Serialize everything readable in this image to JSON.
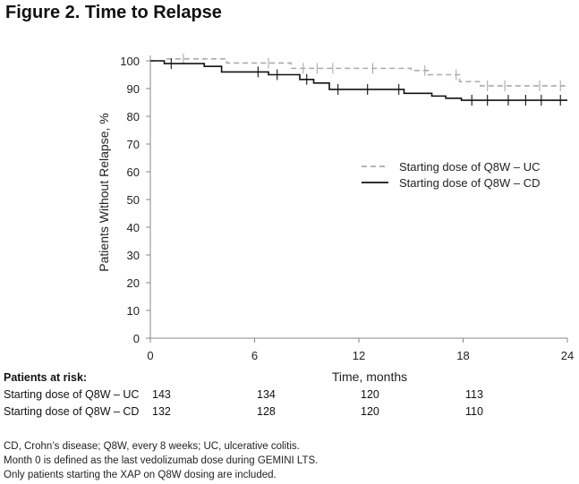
{
  "figure_title": "Figure 2. Time to Relapse",
  "chart_data": {
    "type": "line",
    "title": "",
    "xlabel": "Time, months",
    "ylabel": "Patients Without Relapse, %",
    "xlim": [
      0,
      24
    ],
    "ylim": [
      0,
      100
    ],
    "x_ticks": [
      0,
      6,
      12,
      18,
      24
    ],
    "y_ticks": [
      0,
      10,
      20,
      30,
      40,
      50,
      60,
      70,
      80,
      90,
      100
    ],
    "grid": false,
    "legend_position": "right-center",
    "series": [
      {
        "name": "Starting dose of Q8W – UC",
        "color": "#aaaaaa",
        "line_style": "dashed",
        "x": [
          0,
          0.8,
          0.8,
          4.4,
          4.4,
          8.1,
          8.1,
          15.0,
          15.0,
          16.0,
          16.0,
          17.8,
          17.8,
          19.0,
          19.0,
          24.0
        ],
        "y": [
          100,
          100,
          100.7,
          100.7,
          99.2,
          99.2,
          97.3,
          97.3,
          96.5,
          96.5,
          95.0,
          95.0,
          92.5,
          92.5,
          91.0,
          91.0
        ],
        "censored_x": [
          1.9,
          6.8,
          8.8,
          9.6,
          10.5,
          12.8,
          15.8,
          17.6,
          19.4,
          20.4,
          22.4,
          23.6
        ]
      },
      {
        "name": "Starting dose of Q8W – CD",
        "color": "#111111",
        "line_style": "solid",
        "x": [
          0,
          0.8,
          0.8,
          3.1,
          3.1,
          4.1,
          4.1,
          6.8,
          6.8,
          8.6,
          8.6,
          9.4,
          9.4,
          10.3,
          10.3,
          14.6,
          14.6,
          16.2,
          16.2,
          17.0,
          17.0,
          17.9,
          17.9,
          24.0
        ],
        "y": [
          100,
          100,
          99.0,
          99.0,
          98.0,
          98.0,
          96.0,
          96.0,
          95.0,
          95.0,
          93.3,
          93.3,
          92.0,
          92.0,
          89.7,
          89.7,
          88.3,
          88.3,
          87.3,
          87.3,
          86.5,
          86.5,
          85.8,
          85.8
        ],
        "censored_x": [
          1.2,
          6.2,
          7.3,
          9.0,
          10.8,
          12.5,
          14.3,
          18.5,
          19.4,
          20.6,
          21.6,
          22.5,
          23.6
        ]
      }
    ]
  },
  "risk_table": {
    "header": "Patients at risk:",
    "rows": [
      {
        "label": "Starting dose of Q8W – UC",
        "values": [
          "143",
          "134",
          "120",
          "113"
        ]
      },
      {
        "label": "Starting dose of Q8W – CD",
        "values": [
          "132",
          "128",
          "120",
          "110"
        ]
      }
    ]
  },
  "footnotes": [
    "CD, Crohn’s disease; Q8W, every 8 weeks; UC, ulcerative colitis.",
    "Month 0 is defined as the last vedolizumab dose during GEMINI LTS.",
    "Only patients starting the XAP on Q8W dosing are included."
  ]
}
